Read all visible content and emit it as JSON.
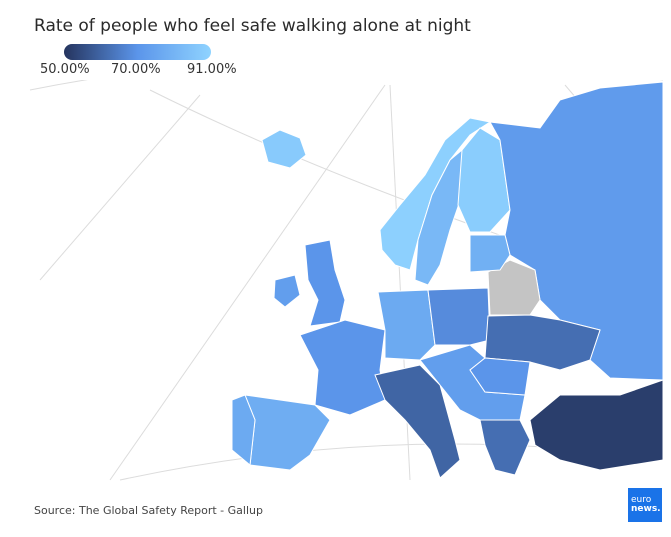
{
  "title": "Rate of people who feel safe walking alone at night",
  "legend": {
    "labels": [
      "50.00%",
      "70.00%",
      "91.00%"
    ],
    "min": 50,
    "mid": 70,
    "max": 91,
    "colors": {
      "min": "#25345e",
      "mid": "#5b95ea",
      "max": "#8fd3ff",
      "no_data": "#c4c4c4"
    }
  },
  "chart_data": {
    "type": "choropleth",
    "title": "Rate of people who feel safe walking alone at night",
    "unit": "%",
    "regions": [
      {
        "name": "Iceland",
        "value": 88
      },
      {
        "name": "Norway",
        "value": 90
      },
      {
        "name": "Sweden",
        "value": 82
      },
      {
        "name": "Finland",
        "value": 89
      },
      {
        "name": "Russia",
        "value": 72
      },
      {
        "name": "United Kingdom",
        "value": 70
      },
      {
        "name": "Ireland",
        "value": 73
      },
      {
        "name": "France",
        "value": 70
      },
      {
        "name": "Spain",
        "value": 78
      },
      {
        "name": "Portugal",
        "value": 77
      },
      {
        "name": "Germany",
        "value": 77
      },
      {
        "name": "Poland",
        "value": 68
      },
      {
        "name": "Belarus",
        "value": null
      },
      {
        "name": "Ukraine",
        "value": 62
      },
      {
        "name": "Baltics",
        "value": 79
      },
      {
        "name": "Italy",
        "value": 60
      },
      {
        "name": "Balkans",
        "value": 73
      },
      {
        "name": "Romania",
        "value": 70
      },
      {
        "name": "Greece",
        "value": 62
      },
      {
        "name": "Turkey",
        "value": 52
      }
    ]
  },
  "source": "Source: The Global Safety Report - Gallup",
  "logo": {
    "line1": "euro",
    "line2": "news."
  }
}
